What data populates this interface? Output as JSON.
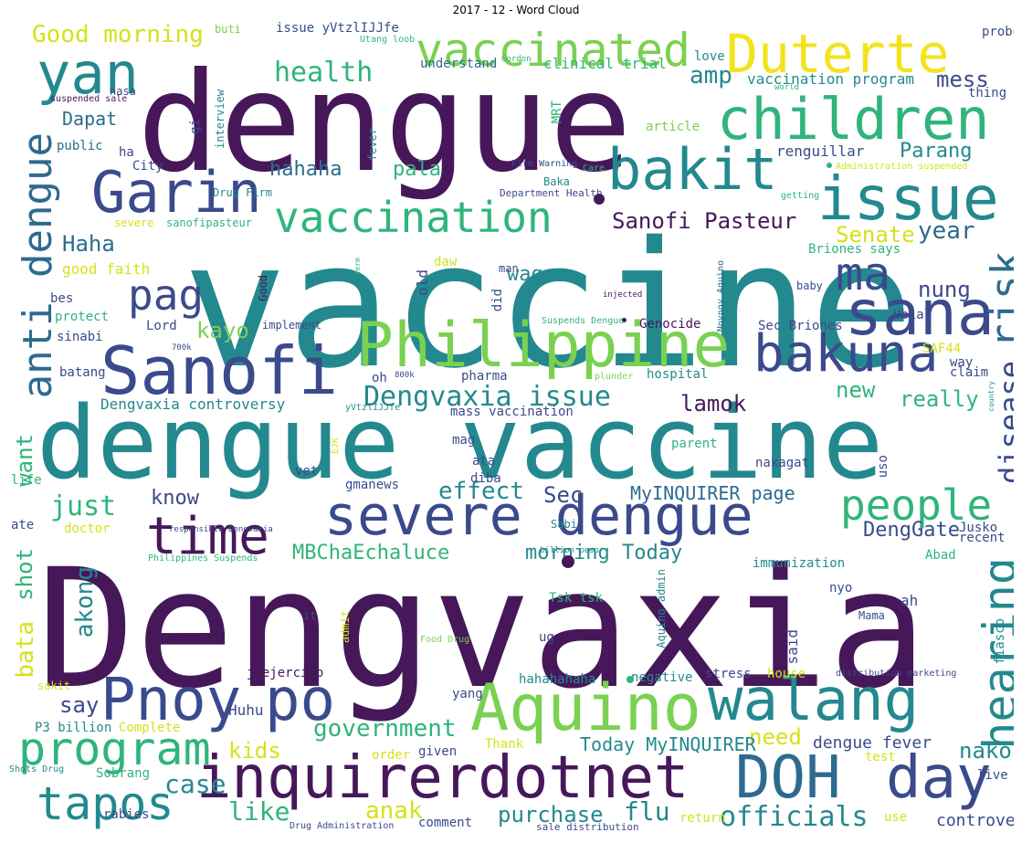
{
  "title": "2017 - 12 - Word Cloud",
  "palette": {
    "purple": "#46185a",
    "indigo": "#3b4a8c",
    "blue": "#2d6b8e",
    "teal": "#23898e",
    "green": "#2fb47c",
    "lime": "#7ad151",
    "yellow": "#d5e21a",
    "brightyellow": "#f3e31c"
  },
  "words": [
    "Dengvaxia",
    "vaccine",
    "dengue",
    "dengue vaccine",
    "Duterte",
    "yan",
    "children",
    "issue",
    "Garin",
    "bakit",
    "vaccinated",
    "Sanofi",
    "Philippine",
    "sana",
    "ma",
    "severe dengue",
    "bakuna",
    "Pnoy",
    "po",
    "Aquino",
    "walang",
    "inquirerdotnet",
    "DOH",
    "day",
    "program",
    "time",
    "people",
    "hearing",
    "vaccination",
    "anti dengue",
    "pag",
    "tapos",
    "risk",
    "disease",
    "Dengvaxia issue",
    "Sanofi Pasteur",
    "government",
    "officials",
    "health",
    "Good morning",
    "Dapat",
    "Haha",
    "hahaha",
    "pala",
    "Senate",
    "Parang",
    "year",
    "nung",
    "kayo",
    "lamok",
    "new",
    "really",
    "effect",
    "Sec",
    "MyINQUIRER page",
    "MBChaEchaluce",
    "morning Today",
    "DengGate",
    "just",
    "know",
    "akong",
    "bata",
    "shot",
    "want",
    "kids",
    "need",
    "nako",
    "anak",
    "like",
    "case",
    "purchase",
    "flu",
    "controversy",
    "dengue fever",
    "Today MyINQUIRER",
    "say",
    "Huhu",
    "wag",
    "amp",
    "mess",
    "vaccination program",
    "clinical trial",
    "understand",
    "probe",
    "love",
    "thing",
    "renguillar",
    "Dengvaxia controversy",
    "mass vaccination",
    "Genocide",
    "Sec Briones",
    "hospital",
    "pharma",
    "Lord",
    "implement",
    "protect",
    "bes",
    "sinabi",
    "batang",
    "good faith",
    "severe",
    "sanofipasteur",
    "Drug Firm",
    "Baka",
    "Department Health",
    "Firm Warning",
    "Care",
    "Administration suspended",
    "getting",
    "Briones says",
    "baby",
    "Ubial",
    "SAF44",
    "way",
    "claim",
    "old",
    "daw",
    "man",
    "did",
    "injected",
    "Noynoy Aquino",
    "term",
    "Good",
    "interview",
    "gi",
    "ha",
    "public",
    "City",
    "nasa",
    "suspended sale",
    "issue yVtzlIJJfe",
    "buti",
    "Utang loob",
    "Gordon",
    "world",
    "article",
    "fever",
    "MRT",
    "Suspends Dengue",
    "700k",
    "800k",
    "oh",
    "plunder",
    "country",
    "yVtzlIJJfe",
    "EJK",
    "mag",
    "ata",
    "diba",
    "parent",
    "nakagat",
    "uso",
    "vet",
    "gmanews",
    "life",
    "ate",
    "doctor",
    "responsible Dengvaxia",
    "Philippines Suspends",
    "Sabi",
    "billion peso",
    "Jusko",
    "recent",
    "immunization",
    "Abad",
    "nyo",
    "ah",
    "Mama",
    "said",
    "fiasco",
    "it",
    "admit",
    "Tsk tsk",
    "Aquino admin",
    "ug",
    "Food Drug",
    "jvejercito",
    "sakit",
    "yang",
    "hahahahaha",
    "negative",
    "stress",
    "house",
    "distribution marketing",
    "P3 billion",
    "Complete",
    "Thank",
    "order",
    "given",
    "test",
    "Shots Drug",
    "Sobrang",
    "rabies",
    "Drug Administration",
    "comment",
    "sale distribution",
    "return",
    "use",
    "live"
  ]
}
